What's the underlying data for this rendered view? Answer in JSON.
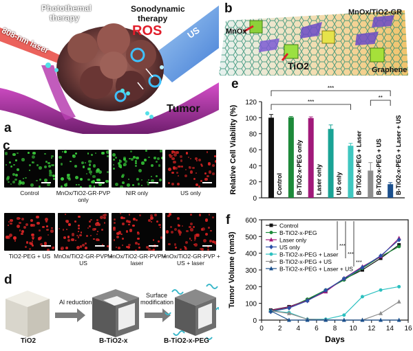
{
  "panel_a": {
    "label": "a",
    "photothermal": "Photothemal",
    "photothermal_2": "therapy",
    "sonodynamic": "Sonodynamic",
    "sonodynamic_2": "therapy",
    "ros": "ROS",
    "us": "US",
    "laser": "808-nm laser",
    "tumor": "Tumor"
  },
  "panel_b": {
    "label": "b",
    "title": "MnOx/TiO2-GR",
    "mno": "MnOx",
    "tio2": "TiO2",
    "graphene": "Graphene"
  },
  "panel_c": {
    "label": "c",
    "row1": [
      {
        "caption": "Control",
        "color": "#39c53a"
      },
      {
        "caption": "MnOx/TiO2-GR-PVP only",
        "color": "#3ccf3e"
      },
      {
        "caption": "NIR only",
        "color": "#35c737"
      },
      {
        "caption": "US only",
        "color": "#d62424"
      }
    ],
    "row2": [
      {
        "caption": "TiO2-PEG + US",
        "color": "#df2626"
      },
      {
        "caption": "MnOx/TiO2-GR-PVP + US",
        "color": "#e02828"
      },
      {
        "caption": "MnOx/TiO2-GR-PVP + laser",
        "color": "#d82222"
      },
      {
        "caption": "MnOx/TiO2-GR-PVP + US + laser",
        "color": "#d42020"
      }
    ]
  },
  "panel_d": {
    "label": "d",
    "step1": "Al reduction",
    "step2a": "Surface",
    "step2b": "modification",
    "cube1": "TiO2",
    "cube2": "B-TiO2-x",
    "cube3": "B-TiO2-x-PEG"
  },
  "panel_e": {
    "label": "e",
    "sig": [
      "***",
      "***",
      "**"
    ]
  },
  "panel_f": {
    "label": "f",
    "sig": [
      "***",
      "***",
      "***"
    ]
  },
  "chart_data": [
    {
      "type": "bar",
      "ylabel": "Relative Cell Viability (%)",
      "ylim": [
        0,
        120
      ],
      "yticks": [
        "0",
        "20",
        "40",
        "60",
        "80",
        "100",
        "120"
      ],
      "categories": [
        "Control",
        "B-TiO2-x-PEG only",
        "Laser only",
        "US only",
        "B-TiO2-x-PEG + Laser",
        "B-TiO2-x-PEG + US",
        "B-TiO2-x-PEG + Laser + US"
      ],
      "values": [
        100,
        100.5,
        99.5,
        86,
        65,
        34,
        17
      ],
      "errors": [
        4,
        1,
        1.5,
        5,
        3,
        10,
        2
      ],
      "colors": [
        "#111111",
        "#1d8a3a",
        "#a1197a",
        "#1aa395",
        "#3fc7c0",
        "#8c8c8c",
        "#1a4f8c"
      ]
    },
    {
      "type": "line",
      "xlabel": "Days",
      "ylabel": "Tumor Volume (mm3)",
      "xlim": [
        0,
        16
      ],
      "ylim": [
        0,
        600
      ],
      "xticks": [
        "0",
        "2",
        "4",
        "6",
        "8",
        "10",
        "12",
        "14",
        "16"
      ],
      "yticks": [
        "0",
        "100",
        "200",
        "300",
        "400",
        "500",
        "600"
      ],
      "x": [
        1,
        3,
        5,
        7,
        9,
        11,
        13,
        15
      ],
      "series": [
        {
          "name": "Control",
          "color": "#111111",
          "marker": "square",
          "values": [
            60,
            80,
            120,
            175,
            245,
            300,
            370,
            450
          ]
        },
        {
          "name": "B-TiO2-x-PEG",
          "color": "#1d8a3a",
          "marker": "circle",
          "values": [
            55,
            75,
            125,
            180,
            240,
            310,
            380,
            440
          ]
        },
        {
          "name": "Laser only",
          "color": "#a1197a",
          "marker": "triangle",
          "values": [
            58,
            78,
            118,
            170,
            250,
            320,
            380,
            490
          ]
        },
        {
          "name": "US only",
          "color": "#2a4fa8",
          "marker": "diamond",
          "values": [
            50,
            72,
            115,
            178,
            248,
            315,
            385,
            480
          ]
        },
        {
          "name": "B-TiO2-x-PEG + Laser",
          "color": "#2cc0c0",
          "marker": "circle",
          "values": [
            55,
            45,
            5,
            5,
            30,
            140,
            180,
            200
          ]
        },
        {
          "name": "B-TiO2-x-PEG + US",
          "color": "#8c8c8c",
          "marker": "triangle",
          "values": [
            55,
            40,
            5,
            2,
            0,
            0,
            40,
            110
          ]
        },
        {
          "name": "B-TiO2-x-PEG + Laser + US",
          "color": "#1a4f8c",
          "marker": "triangle",
          "values": [
            55,
            0,
            0,
            0,
            0,
            0,
            0,
            0
          ]
        }
      ]
    }
  ]
}
